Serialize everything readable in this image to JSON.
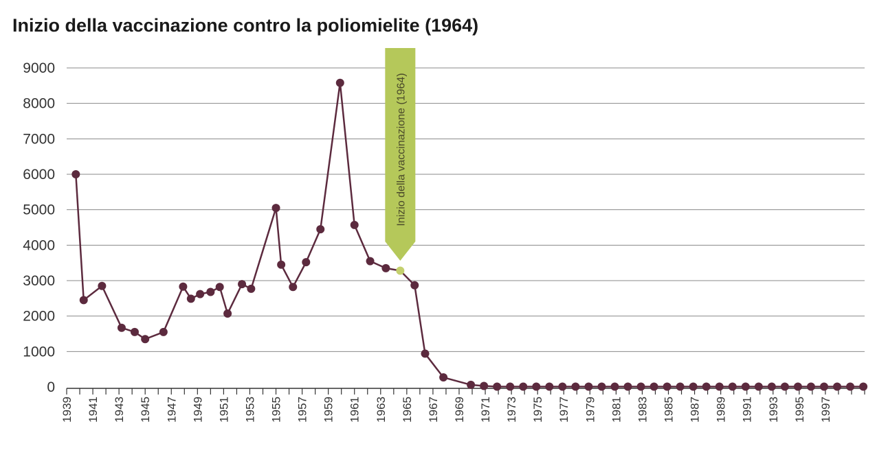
{
  "chart_data": {
    "type": "line",
    "title": "Inizio della vaccinazione contro la poliomielite (1964)",
    "xlabel": "",
    "ylabel": "",
    "ylim": [
      0,
      9000
    ],
    "yticks": [
      0,
      1000,
      2000,
      3000,
      4000,
      5000,
      6000,
      7000,
      8000,
      9000
    ],
    "xlim": [
      1939,
      2000
    ],
    "xticks": [
      1939,
      1941,
      1943,
      1945,
      1947,
      1949,
      1951,
      1953,
      1955,
      1957,
      1959,
      1961,
      1963,
      1965,
      1967,
      1969,
      1971,
      1973,
      1975,
      1977,
      1979,
      1981,
      1983,
      1985,
      1987,
      1989,
      1991,
      1993,
      1995,
      1997
    ],
    "grid": "horizontal",
    "colors": {
      "line": "#5c2a3e",
      "marker": "#5c2a3e",
      "highlight": "#c4d06e",
      "grid": "#888888",
      "annotation_fill": "#b5c85a"
    },
    "series": [
      {
        "points": [
          [
            1939.7,
            6000
          ],
          [
            1940.3,
            2450
          ],
          [
            1941.7,
            2850
          ],
          [
            1943.2,
            1670
          ],
          [
            1944.2,
            1550
          ],
          [
            1945.0,
            1350
          ],
          [
            1946.4,
            1550
          ],
          [
            1947.9,
            2830
          ],
          [
            1948.5,
            2490
          ],
          [
            1949.2,
            2620
          ],
          [
            1950.0,
            2680
          ],
          [
            1950.7,
            2820
          ],
          [
            1951.3,
            2070
          ],
          [
            1952.4,
            2900
          ],
          [
            1953.1,
            2770
          ],
          [
            1955.0,
            5050
          ],
          [
            1955.4,
            3450
          ],
          [
            1956.3,
            2820
          ],
          [
            1957.3,
            3520
          ],
          [
            1958.4,
            4450
          ],
          [
            1959.9,
            8580
          ],
          [
            1961.0,
            4570
          ],
          [
            1962.2,
            3550
          ],
          [
            1963.4,
            3350
          ],
          [
            1964.5,
            3280
          ],
          [
            1965.6,
            2870
          ],
          [
            1966.4,
            940
          ],
          [
            1967.8,
            270
          ],
          [
            1969.9,
            60
          ],
          [
            1970.9,
            30
          ],
          [
            1971.9,
            10
          ],
          [
            1972.9,
            10
          ],
          [
            1973.9,
            10
          ],
          [
            1974.9,
            10
          ],
          [
            1975.9,
            10
          ],
          [
            1976.9,
            10
          ],
          [
            1977.9,
            10
          ],
          [
            1978.9,
            10
          ],
          [
            1979.9,
            10
          ],
          [
            1980.9,
            10
          ],
          [
            1981.9,
            10
          ],
          [
            1982.9,
            10
          ],
          [
            1983.9,
            10
          ],
          [
            1984.9,
            10
          ],
          [
            1985.9,
            10
          ],
          [
            1986.9,
            10
          ],
          [
            1987.9,
            10
          ],
          [
            1988.9,
            10
          ],
          [
            1989.9,
            10
          ],
          [
            1990.9,
            10
          ],
          [
            1991.9,
            10
          ],
          [
            1992.9,
            10
          ],
          [
            1993.9,
            10
          ],
          [
            1994.9,
            10
          ],
          [
            1995.9,
            10
          ],
          [
            1996.9,
            10
          ],
          [
            1997.9,
            10
          ],
          [
            1998.9,
            10
          ],
          [
            1999.9,
            10
          ]
        ],
        "highlight_index": 24
      }
    ],
    "annotation": {
      "label": "Inizio della vaccinazione (1964)",
      "x": 1964.5
    }
  }
}
